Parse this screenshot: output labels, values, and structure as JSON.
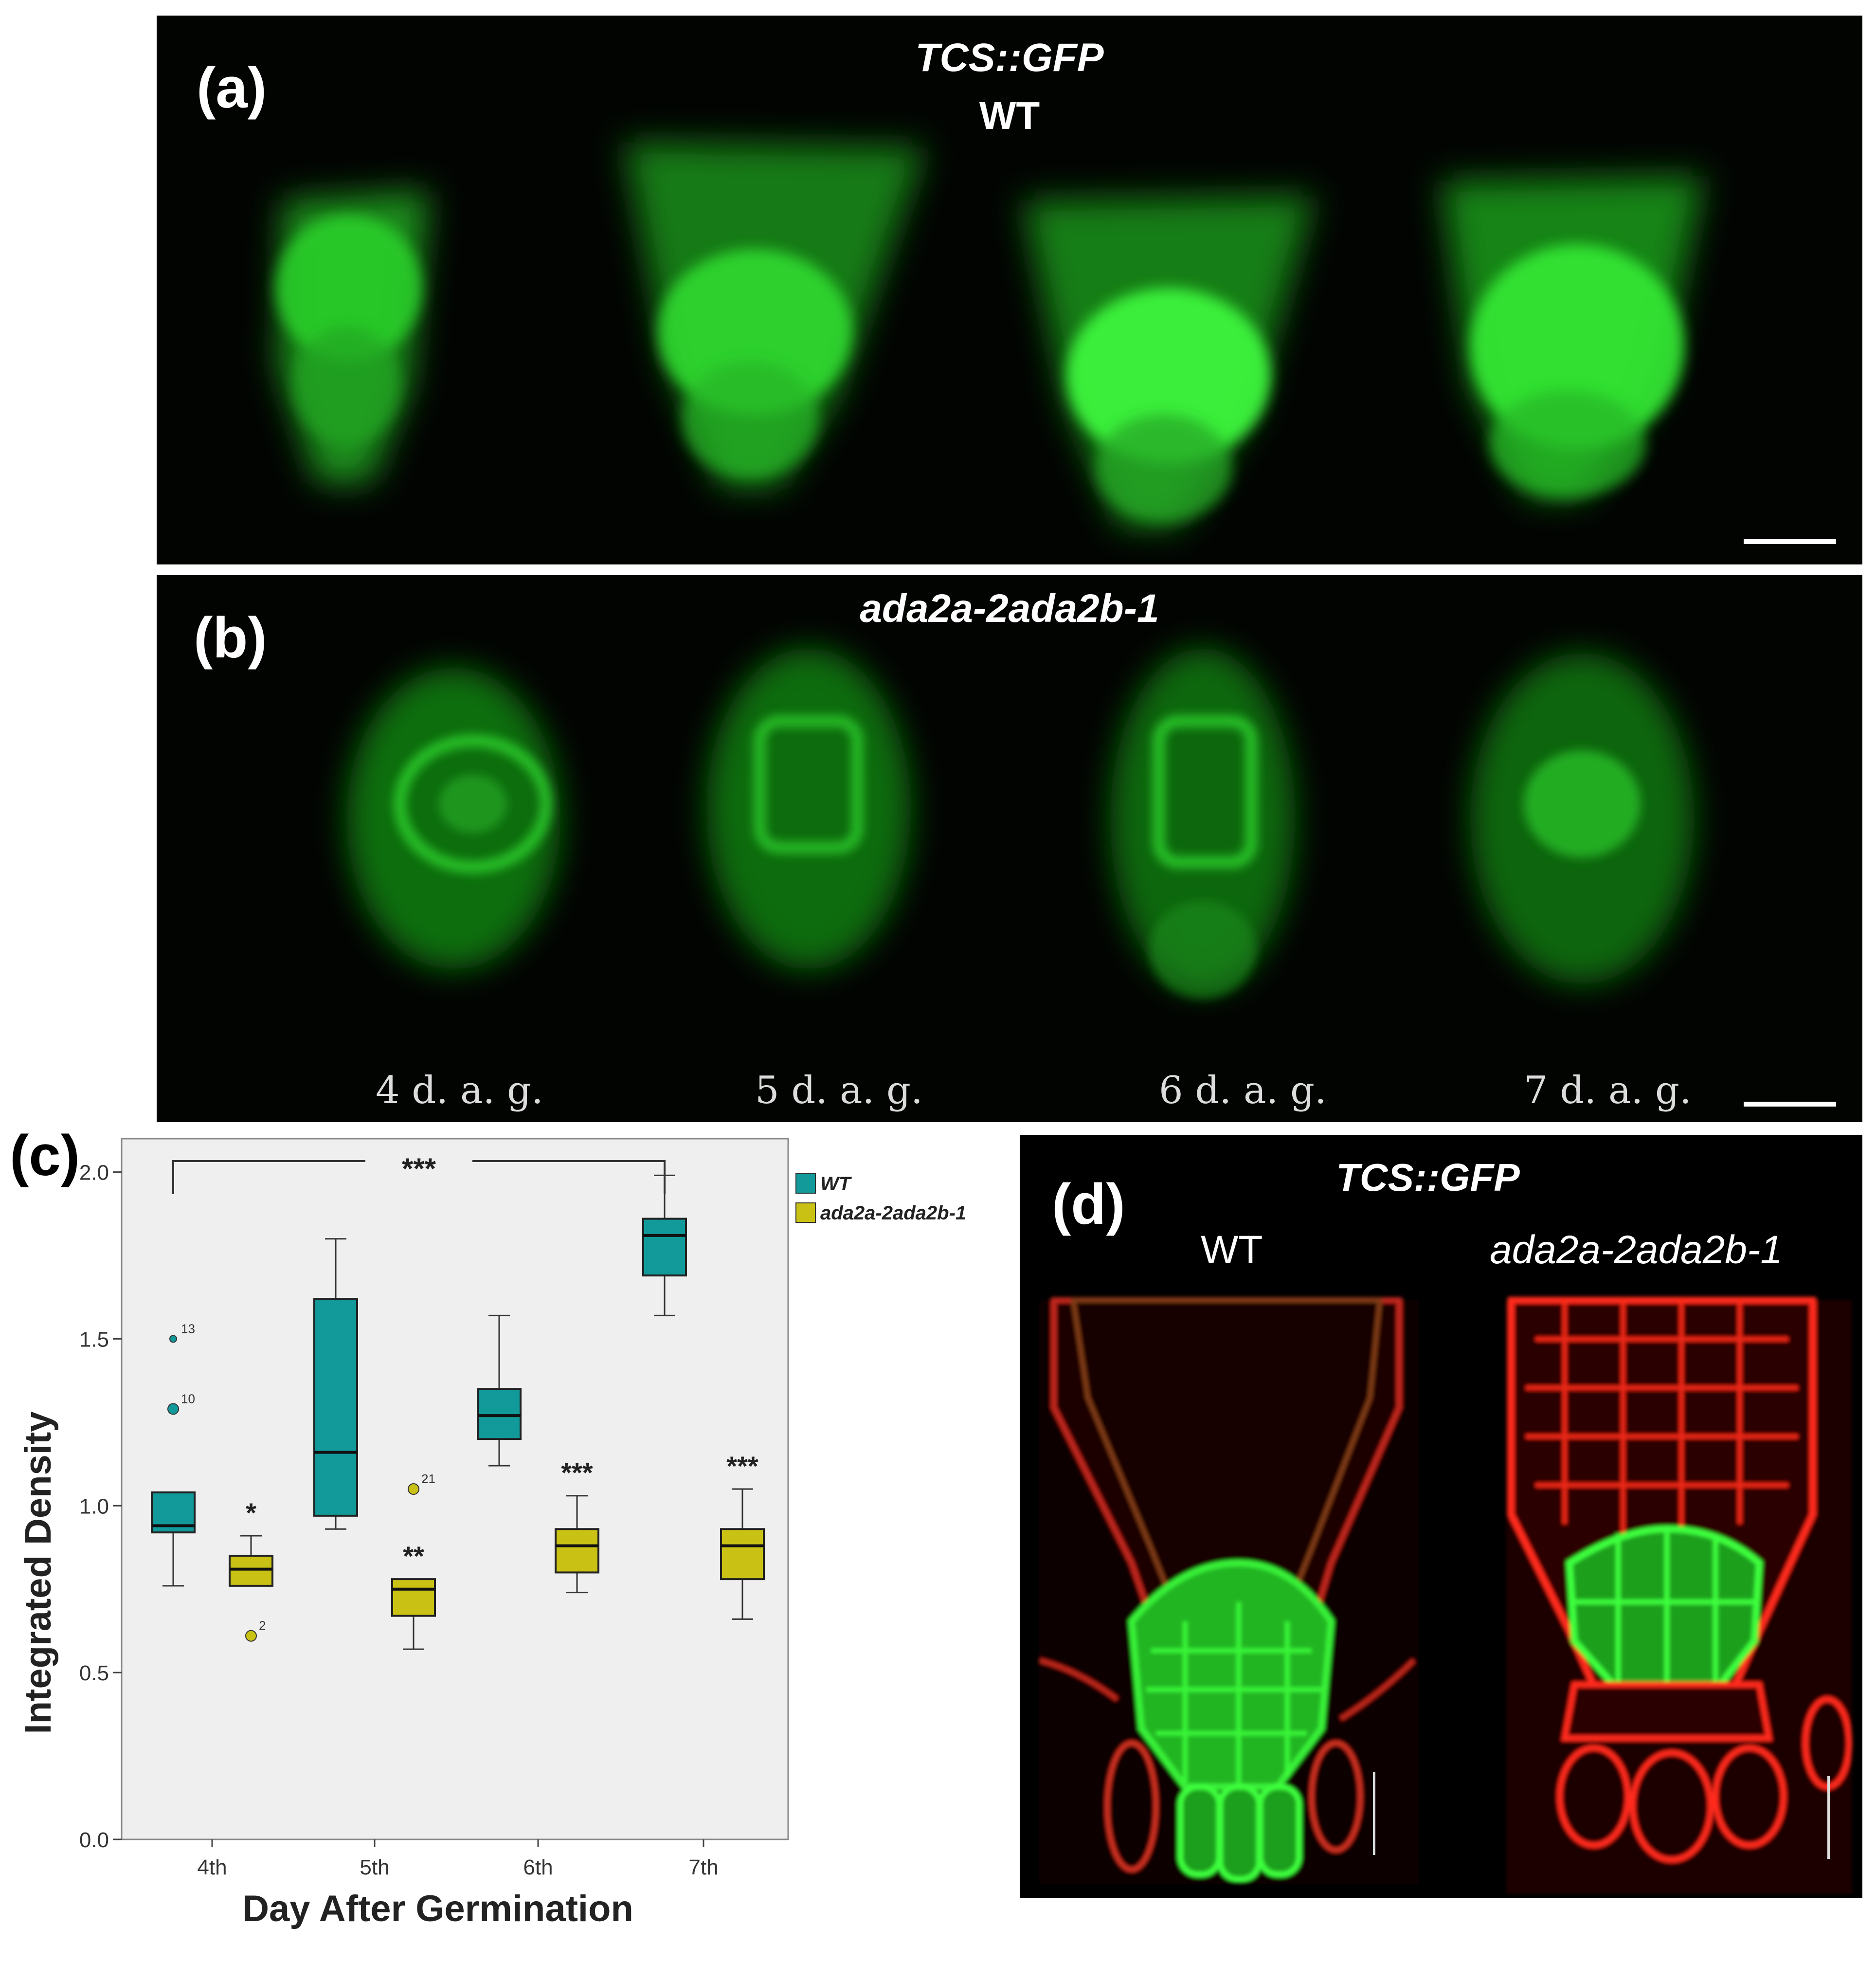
{
  "panel_a": {
    "label": "(a)",
    "title_line1": "TCS::GFP",
    "title_line2": "WT"
  },
  "panel_b": {
    "label": "(b)",
    "title": "ada2a-2ada2b-1",
    "day_labels": [
      "4 d. a. g.",
      "5 d. a. g.",
      "6 d. a. g.",
      "7 d. a. g."
    ]
  },
  "panel_c": {
    "label": "(c)"
  },
  "panel_d": {
    "label": "(d)",
    "title": "TCS::GFP",
    "left_label": "WT",
    "right_label": "ada2a-2ada2b-1"
  },
  "colors": {
    "wt": "#129a9a",
    "mutant": "#c9c114",
    "gfp": "#2ee82e",
    "membrane": "#ff2a1a",
    "plot_bg": "#efefef"
  },
  "chart_data": {
    "type": "box",
    "title": "",
    "xlabel": "Day After Germination",
    "ylabel": "Integrated Density",
    "categories": [
      "4th",
      "5th",
      "6th",
      "7th"
    ],
    "ylim": [
      0.0,
      2.1
    ],
    "yticks": [
      0.0,
      0.5,
      1.0,
      1.5,
      2.0
    ],
    "ytick_labels": [
      "0.0",
      "0.5",
      "1.0",
      "1.5",
      "2.0"
    ],
    "grid": false,
    "legend_position": "top-right, outside plot",
    "series": [
      {
        "name": "WT",
        "boxes": [
          {
            "min": 0.76,
            "q1": 0.92,
            "median": 0.94,
            "q3": 1.04,
            "max": 1.04,
            "outliers": [
              {
                "value": 1.29,
                "label": "10"
              },
              {
                "value": 1.5,
                "label": "13"
              }
            ]
          },
          {
            "min": 0.93,
            "q1": 0.97,
            "median": 1.16,
            "q3": 1.62,
            "max": 1.8,
            "outliers": []
          },
          {
            "min": 1.12,
            "q1": 1.2,
            "median": 1.27,
            "q3": 1.35,
            "max": 1.57,
            "outliers": []
          },
          {
            "min": 1.57,
            "q1": 1.69,
            "median": 1.81,
            "q3": 1.86,
            "max": 1.99,
            "outliers": []
          }
        ]
      },
      {
        "name": "ada2a-2ada2b-1",
        "boxes": [
          {
            "min": 0.76,
            "q1": 0.76,
            "median": 0.81,
            "q3": 0.85,
            "max": 0.91,
            "outliers": [
              {
                "value": 0.61,
                "label": "2"
              }
            ]
          },
          {
            "min": 0.57,
            "q1": 0.67,
            "median": 0.75,
            "q3": 0.78,
            "max": 0.78,
            "outliers": [
              {
                "value": 1.05,
                "label": "21"
              }
            ]
          },
          {
            "min": 0.74,
            "q1": 0.8,
            "median": 0.88,
            "q3": 0.93,
            "max": 1.03,
            "outliers": []
          },
          {
            "min": 0.66,
            "q1": 0.78,
            "median": 0.88,
            "q3": 0.93,
            "max": 1.05,
            "outliers": []
          }
        ]
      }
    ],
    "annotations": [
      {
        "text": "*",
        "category": "4th",
        "y": 0.98
      },
      {
        "text": "**",
        "category": "5th",
        "y": 0.85
      },
      {
        "text": "***",
        "category": "6th",
        "y": 1.1
      },
      {
        "text": "***",
        "category": "7th",
        "y": 1.12
      },
      {
        "text": "***",
        "bracket_from": "4th",
        "bracket_to": "7th",
        "y": 2.15
      }
    ]
  }
}
